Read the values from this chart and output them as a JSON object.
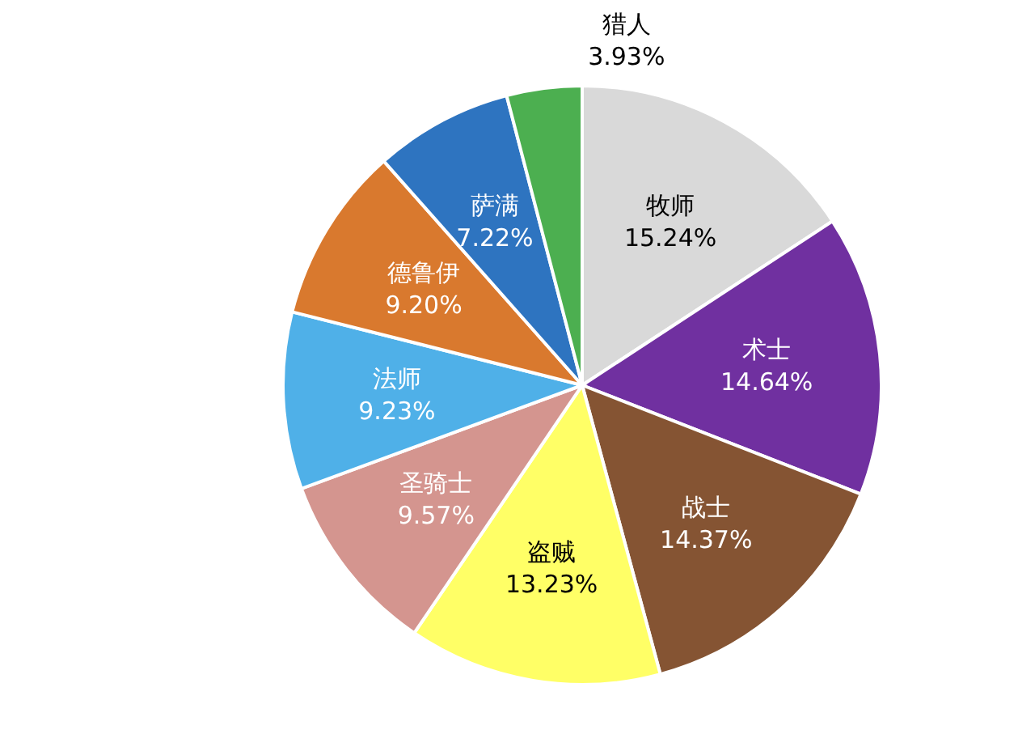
{
  "chart_data": {
    "type": "pie",
    "categories": [
      "牧师",
      "术士",
      "战士",
      "盗贼",
      "圣骑士",
      "法师",
      "德鲁伊",
      "萨满",
      "猎人"
    ],
    "values": [
      15.24,
      14.64,
      14.37,
      13.23,
      9.57,
      9.23,
      9.2,
      7.22,
      3.93
    ],
    "value_labels": [
      "15.24%",
      "14.64%",
      "14.37%",
      "13.23%",
      "9.57%",
      "9.23%",
      "9.20%",
      "7.22%",
      "3.93%"
    ],
    "colors": [
      "#d9d9d9",
      "#7030a0",
      "#855433",
      "#ffff66",
      "#d4958f",
      "#4fb0e8",
      "#d9792e",
      "#2e74c0",
      "#4caf50"
    ],
    "data_labels": true
  }
}
